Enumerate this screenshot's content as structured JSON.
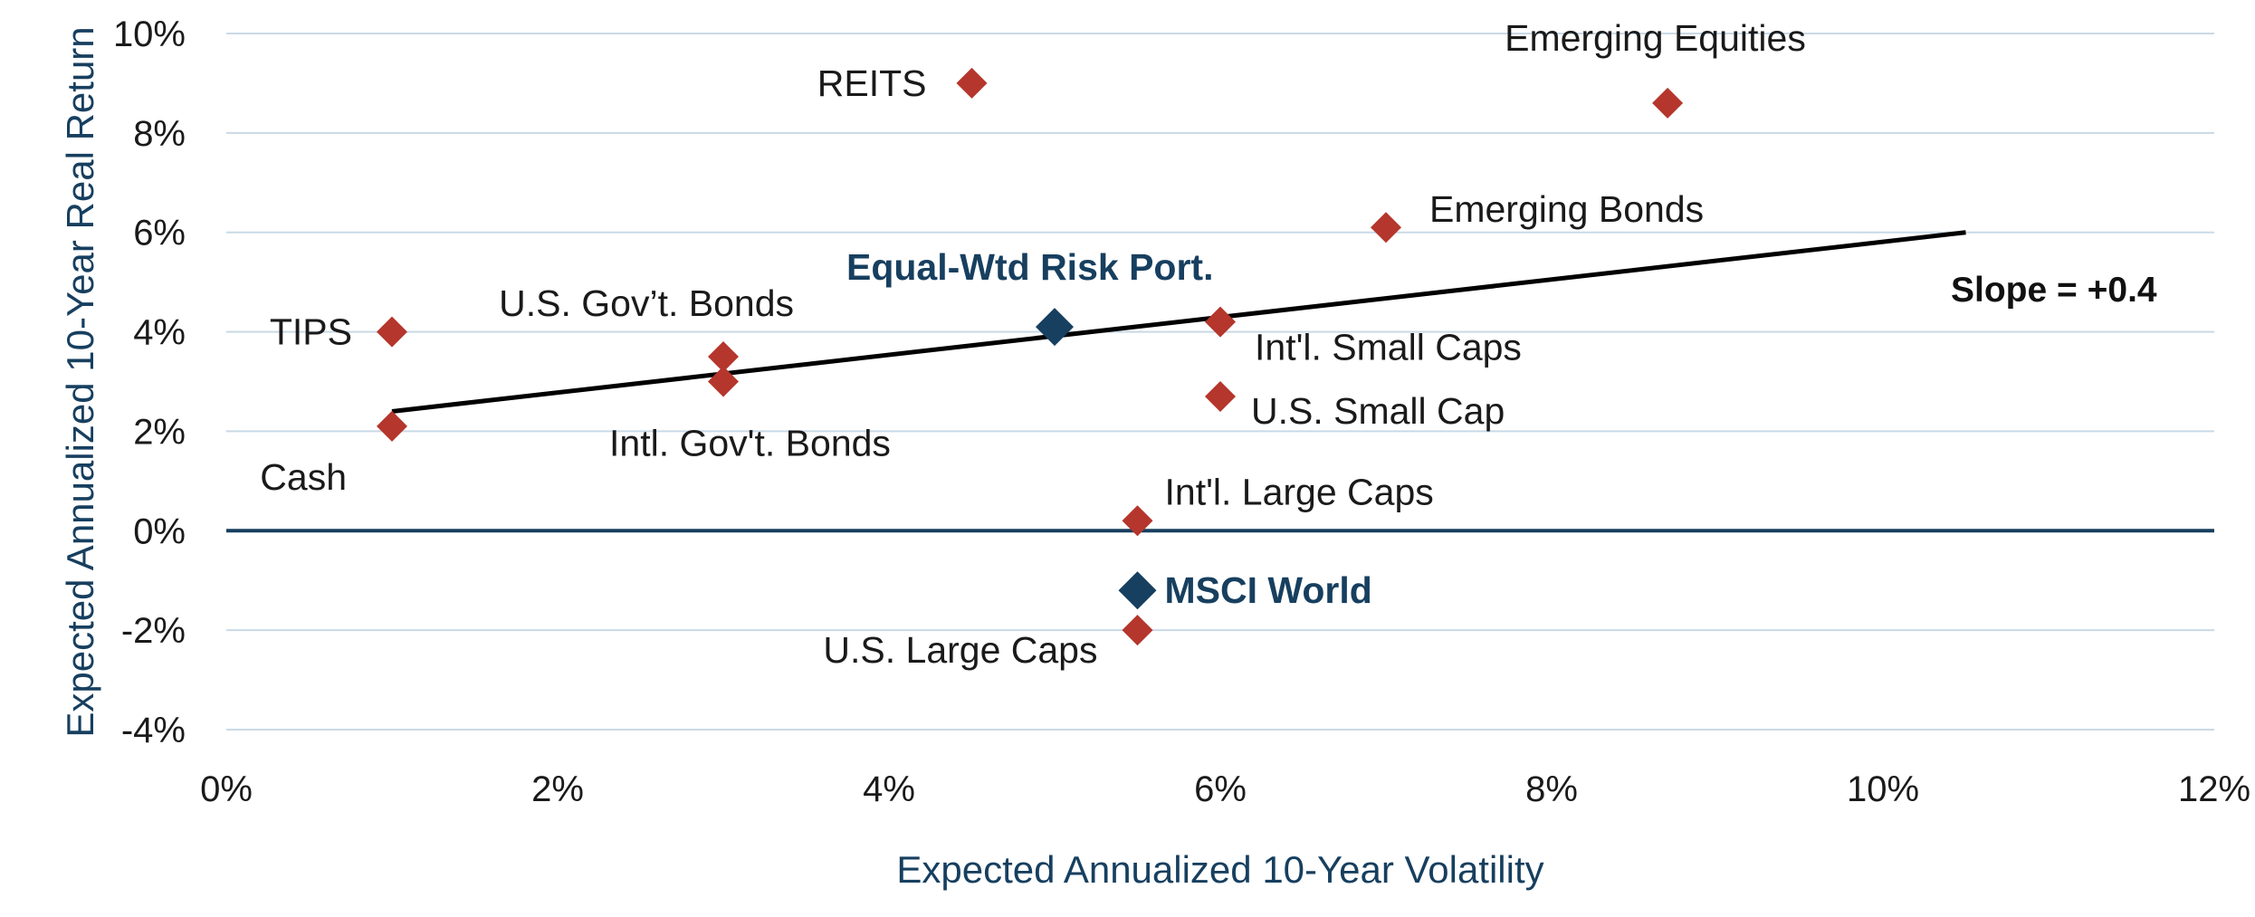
{
  "chart_data": {
    "type": "scatter",
    "xlabel": "Expected Annualized 10-Year Volatility",
    "ylabel": "Expected Annualized 10-Year Real Return",
    "xlim": [
      0,
      12
    ],
    "ylim": [
      -4,
      10
    ],
    "x_ticks": [
      "0%",
      "2%",
      "4%",
      "6%",
      "8%",
      "10%",
      "12%"
    ],
    "y_ticks": [
      "10%",
      "8%",
      "6%",
      "4%",
      "2%",
      "0%",
      "-2%",
      "-4%"
    ],
    "grid": "horizontal",
    "colors": {
      "asset": "#b5362c",
      "highlight": "#173f5f",
      "trend": "#000000",
      "grid": "#c9d9e6",
      "zero_line": "#173f5f"
    },
    "points": [
      {
        "name": "Cash",
        "x": 1.0,
        "y": 2.1,
        "highlight": false
      },
      {
        "name": "TIPS",
        "x": 1.0,
        "y": 4.0,
        "highlight": false
      },
      {
        "name": "U.S. Gov’t. Bonds",
        "x": 3.0,
        "y": 3.5,
        "highlight": false
      },
      {
        "name": "Intl. Gov't. Bonds",
        "x": 3.0,
        "y": 3.0,
        "highlight": false
      },
      {
        "name": "REITS",
        "x": 4.5,
        "y": 9.0,
        "highlight": false
      },
      {
        "name": "Equal-Wtd Risk Port.",
        "x": 5.0,
        "y": 4.1,
        "highlight": true
      },
      {
        "name": "Int'l. Large Caps",
        "x": 5.5,
        "y": 0.2,
        "highlight": false
      },
      {
        "name": "MSCI World",
        "x": 5.5,
        "y": -1.2,
        "highlight": true
      },
      {
        "name": "U.S. Large Caps",
        "x": 5.5,
        "y": -2.0,
        "highlight": false
      },
      {
        "name": "Int'l. Small Caps",
        "x": 6.0,
        "y": 4.2,
        "highlight": false
      },
      {
        "name": "U.S. Small Cap",
        "x": 6.0,
        "y": 2.7,
        "highlight": false
      },
      {
        "name": "Emerging Bonds",
        "x": 7.0,
        "y": 6.1,
        "highlight": false
      },
      {
        "name": "Emerging Equities",
        "x": 8.7,
        "y": 8.6,
        "highlight": false
      }
    ],
    "trendline": {
      "x": [
        1.0,
        10.5
      ],
      "y": [
        2.4,
        6.0
      ],
      "label": "Slope = +0.4"
    }
  }
}
